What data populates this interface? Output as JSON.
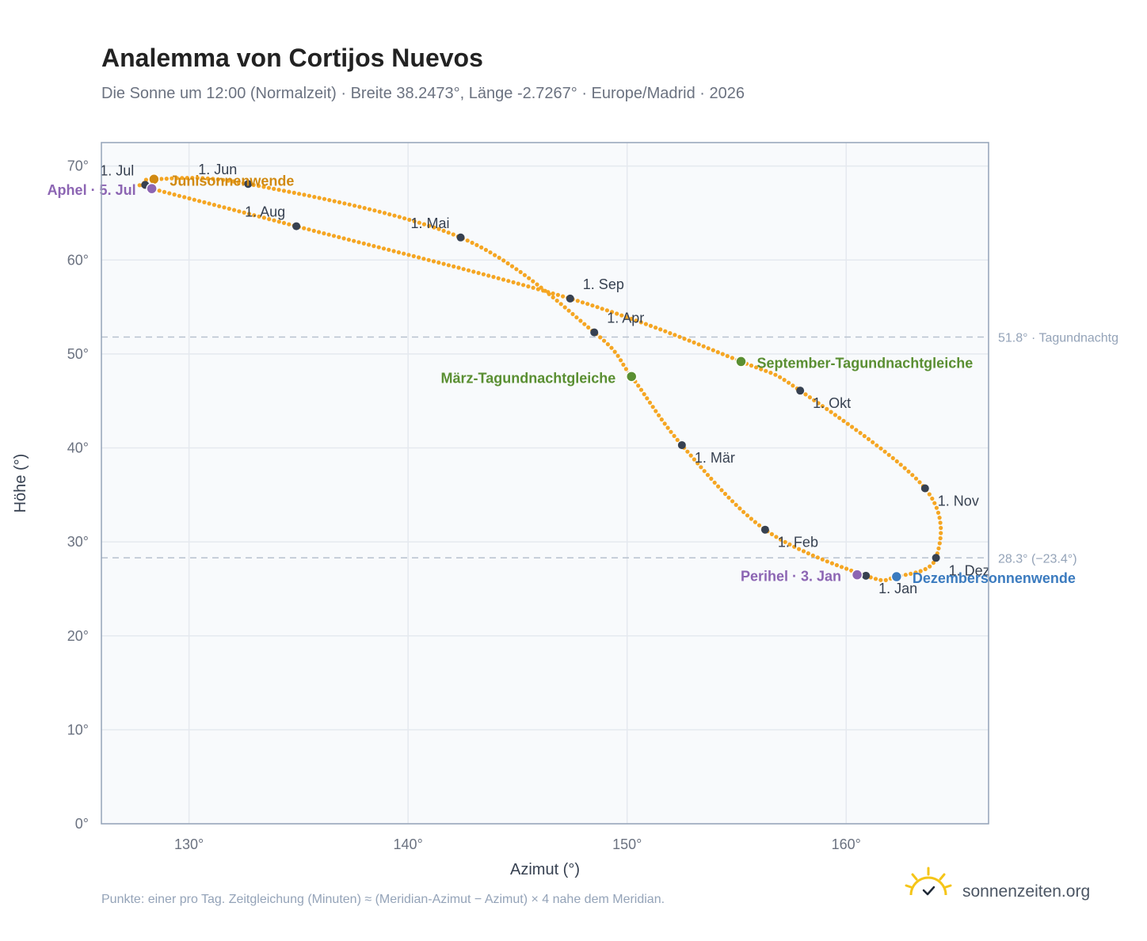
{
  "title": "Analemma von Cortijos Nuevos",
  "subtitle": "Die Sonne um 12:00 (Normalzeit) · Breite 38.2473°, Länge -2.7267° · Europe/Madrid · 2026",
  "footnote": "Punkte: einer pro Tag. Zeitgleichung (Minuten) ≈ (Meridian-Azimut − Azimut) × 4 nahe dem Meridian.",
  "brand": {
    "text": "sonnenzeiten.org",
    "icon": "sun-check-icon",
    "color": "#f5c518"
  },
  "colors": {
    "curve": "#f5a623",
    "month_dot": "#374151",
    "solstice_june": "#d18a12",
    "solstice_december": "#3b7bbf",
    "equinox": "#5a8f32",
    "apsis": "#8c65b3",
    "plot_bg": "#f8fafc",
    "grid": "#e5e9ef",
    "ref_line": "#b8c2cf",
    "frame": "#94a3b8"
  },
  "chart_data": {
    "type": "scatter",
    "title": "Analemma von Cortijos Nuevos",
    "xlabel": "Azimut (°)",
    "ylabel": "Höhe (°)",
    "xlim": [
      126,
      166.5
    ],
    "ylim": [
      0,
      72.5
    ],
    "xticks": [
      130,
      140,
      150,
      160
    ],
    "yticks": [
      0,
      10,
      20,
      30,
      40,
      50,
      60,
      70
    ],
    "xtick_labels": [
      "130°",
      "140°",
      "150°",
      "160°"
    ],
    "ytick_labels": [
      "0°",
      "10°",
      "20°",
      "30°",
      "40°",
      "50°",
      "60°",
      "70°"
    ],
    "grid": true,
    "series": [
      {
        "points_per_day": true,
        "points": [
          {
            "date": "1. Jan",
            "x": 160.9,
            "y": 26.4
          },
          {
            "date": "1. Feb",
            "x": 156.3,
            "y": 31.3
          },
          {
            "date": "1. Mär",
            "x": 152.5,
            "y": 40.3
          },
          {
            "date": "März-Tagundnachtgleiche",
            "x": 150.2,
            "y": 47.6
          },
          {
            "date": "1. Apr",
            "x": 148.5,
            "y": 52.3
          },
          {
            "date": "1. Mai",
            "x": 142.4,
            "y": 62.4
          },
          {
            "date": "1. Jun",
            "x": 132.7,
            "y": 68.1
          },
          {
            "date": "Junisonnenwende",
            "x": 128.4,
            "y": 68.6
          },
          {
            "date": "1. Jul",
            "x": 128.0,
            "y": 68.0
          },
          {
            "date": "Aphel · 5. Jul",
            "x": 128.3,
            "y": 67.6
          },
          {
            "date": "1. Aug",
            "x": 134.9,
            "y": 63.6
          },
          {
            "date": "1. Sep",
            "x": 147.4,
            "y": 55.9
          },
          {
            "date": "September-Tagundnachtgleiche",
            "x": 155.2,
            "y": 49.2
          },
          {
            "date": "1. Okt",
            "x": 157.9,
            "y": 46.1
          },
          {
            "date": "1. Nov",
            "x": 163.6,
            "y": 35.7
          },
          {
            "date": "1. Dez",
            "x": 164.1,
            "y": 28.3
          },
          {
            "date": "Dezembersonnenwende",
            "x": 162.3,
            "y": 26.3
          }
        ]
      }
    ],
    "month_markers": [
      {
        "label": "1. Jan",
        "x": 160.9,
        "y": 26.4,
        "label_pos": "below-right"
      },
      {
        "label": "1. Feb",
        "x": 156.3,
        "y": 31.3,
        "label_pos": "below-right"
      },
      {
        "label": "1. Mär",
        "x": 152.5,
        "y": 40.3,
        "label_pos": "below-right"
      },
      {
        "label": "1. Apr",
        "x": 148.5,
        "y": 52.3,
        "label_pos": "above-right"
      },
      {
        "label": "1. Mai",
        "x": 142.4,
        "y": 62.4,
        "label_pos": "above-left"
      },
      {
        "label": "1. Jun",
        "x": 132.7,
        "y": 68.1,
        "label_pos": "above-left"
      },
      {
        "label": "1. Jul",
        "x": 128.0,
        "y": 68.0,
        "label_pos": "above-left"
      },
      {
        "label": "1. Aug",
        "x": 134.9,
        "y": 63.6,
        "label_pos": "above-left"
      },
      {
        "label": "1. Sep",
        "x": 147.4,
        "y": 55.9,
        "label_pos": "above-right"
      },
      {
        "label": "1. Okt",
        "x": 157.9,
        "y": 46.1,
        "label_pos": "below-right"
      },
      {
        "label": "1. Nov",
        "x": 163.6,
        "y": 35.7,
        "label_pos": "below-right"
      },
      {
        "label": "1. Dez",
        "x": 164.1,
        "y": 28.3,
        "label_pos": "below-right"
      }
    ],
    "events": [
      {
        "label": "Junisonnenwende",
        "x": 128.4,
        "y": 68.6,
        "color_key": "solstice_june",
        "label_pos": "right"
      },
      {
        "label": "Dezembersonnenwende",
        "x": 162.3,
        "y": 26.3,
        "color_key": "solstice_december",
        "label_pos": "right"
      },
      {
        "label": "März-Tagundnachtgleiche",
        "x": 150.2,
        "y": 47.6,
        "color_key": "equinox",
        "label_pos": "left"
      },
      {
        "label": "September-Tagundnachtgleiche",
        "x": 155.2,
        "y": 49.2,
        "color_key": "equinox",
        "label_pos": "right"
      },
      {
        "label": "Aphel · 5. Jul",
        "x": 128.3,
        "y": 67.6,
        "color_key": "apsis",
        "label_pos": "left"
      },
      {
        "label": "Perihel · 3. Jan",
        "x": 160.5,
        "y": 26.5,
        "color_key": "apsis",
        "label_pos": "left"
      }
    ],
    "reference_lines": [
      {
        "y": 51.8,
        "label": "51.8° · Tagundnachtg"
      },
      {
        "y": 28.3,
        "label": "28.3° (−23.4°)"
      }
    ]
  }
}
